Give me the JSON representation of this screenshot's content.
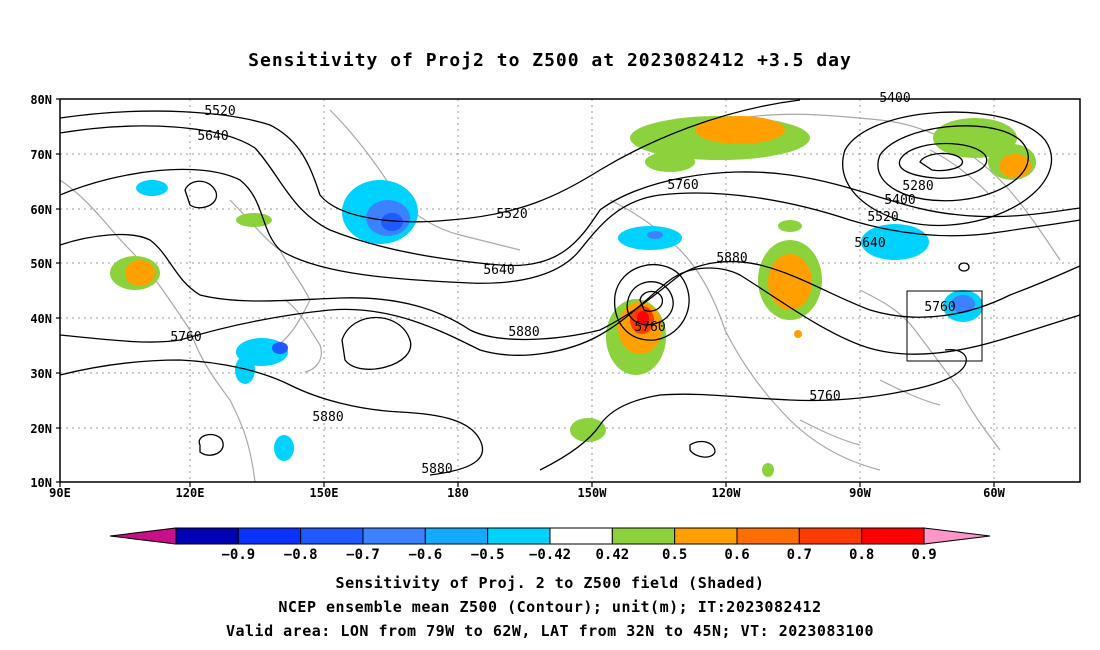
{
  "title": "Sensitivity of Proj2 to Z500 at 2023082412 +3.5 day",
  "map": {
    "lat_labels": [
      "80N",
      "70N",
      "60N",
      "50N",
      "40N",
      "30N",
      "20N",
      "10N"
    ],
    "lon_labels": [
      "90E",
      "120E",
      "150E",
      "180",
      "150W",
      "120W",
      "90W",
      "60W"
    ],
    "contour_labels": [
      {
        "text": "5400"
      },
      {
        "text": "5520"
      },
      {
        "text": "5640"
      },
      {
        "text": "5280"
      },
      {
        "text": "5400"
      },
      {
        "text": "5520"
      },
      {
        "text": "5640"
      },
      {
        "text": "5760"
      },
      {
        "text": "5520"
      },
      {
        "text": "5640"
      },
      {
        "text": "5760"
      },
      {
        "text": "5880"
      },
      {
        "text": "5760"
      },
      {
        "text": "5760"
      },
      {
        "text": "5880"
      },
      {
        "text": "5880"
      },
      {
        "text": "5880"
      },
      {
        "text": "5760"
      }
    ],
    "valid_box": {
      "lon_from": "79W",
      "lon_to": "62W",
      "lat_from": "32N",
      "lat_to": "45N"
    }
  },
  "colorbar": {
    "labels": [
      "-0.9",
      "-0.8",
      "-0.7",
      "-0.6",
      "-0.5",
      "-0.42",
      "0.42",
      "0.5",
      "0.6",
      "0.7",
      "0.8",
      "0.9"
    ],
    "colors": [
      "#c8108a",
      "#0000b4",
      "#0a32ff",
      "#1e5aff",
      "#3c82ff",
      "#14aaff",
      "#00d2ff",
      "#ffffff",
      "#8cd23c",
      "#ffa000",
      "#ff6e00",
      "#ff3c00",
      "#ff0000",
      "#ff96c8"
    ]
  },
  "captions": {
    "line1": "Sensitivity of Proj. 2 to Z500 field (Shaded)",
    "line2": "NCEP ensemble mean Z500 (Contour); unit(m); IT:2023082412",
    "line3": "Valid area: LON from 79W to 62W, LAT from 32N to 45N; VT: 2023083100"
  }
}
